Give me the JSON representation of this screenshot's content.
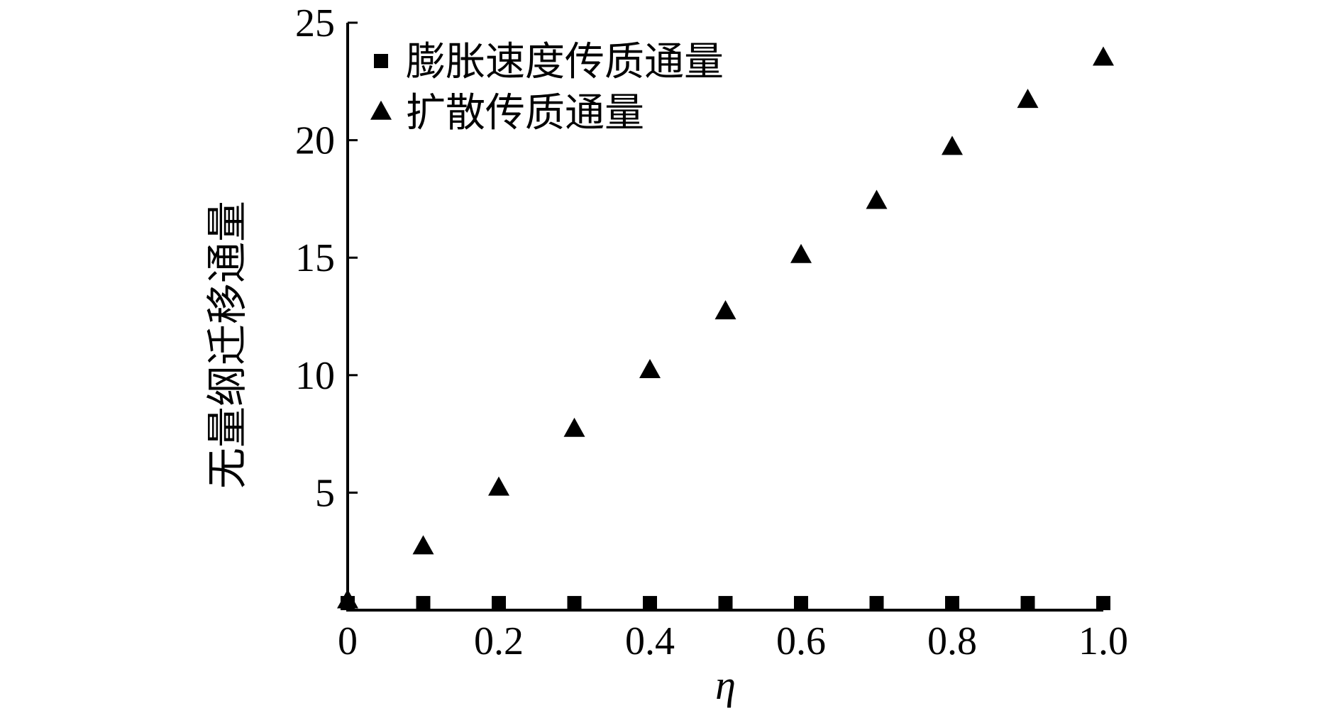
{
  "chart_data": {
    "type": "scatter",
    "xlabel": "η",
    "ylabel": "无量纲迁移通量",
    "xlim": [
      0,
      1.0
    ],
    "ylim": [
      0,
      25
    ],
    "xticks": [
      {
        "value": 0,
        "label": "0"
      },
      {
        "value": 0.2,
        "label": "0.2"
      },
      {
        "value": 0.4,
        "label": "0.4"
      },
      {
        "value": 0.6,
        "label": "0.6"
      },
      {
        "value": 0.8,
        "label": "0.8"
      },
      {
        "value": 1.0,
        "label": "1.0"
      }
    ],
    "yticks": [
      {
        "value": 5,
        "label": "5"
      },
      {
        "value": 10,
        "label": "10"
      },
      {
        "value": 15,
        "label": "15"
      },
      {
        "value": 20,
        "label": "20"
      },
      {
        "value": 25,
        "label": "25"
      }
    ],
    "grid": false,
    "legend_position": "top-left",
    "series": [
      {
        "name": "膨胀速度传质通量",
        "marker": "square",
        "color": "#000000",
        "x": [
          0.0,
          0.1,
          0.2,
          0.3,
          0.4,
          0.5,
          0.6,
          0.7,
          0.8,
          0.9,
          1.0
        ],
        "y": [
          0.3,
          0.3,
          0.3,
          0.3,
          0.3,
          0.3,
          0.3,
          0.3,
          0.3,
          0.3,
          0.3
        ]
      },
      {
        "name": "扩散传质通量",
        "marker": "triangle",
        "color": "#000000",
        "x": [
          0.0,
          0.1,
          0.2,
          0.3,
          0.4,
          0.5,
          0.6,
          0.7,
          0.8,
          0.9,
          1.0
        ],
        "y": [
          0.4,
          2.7,
          5.2,
          7.7,
          10.2,
          12.7,
          15.1,
          17.4,
          19.7,
          21.7,
          23.5
        ]
      }
    ]
  }
}
